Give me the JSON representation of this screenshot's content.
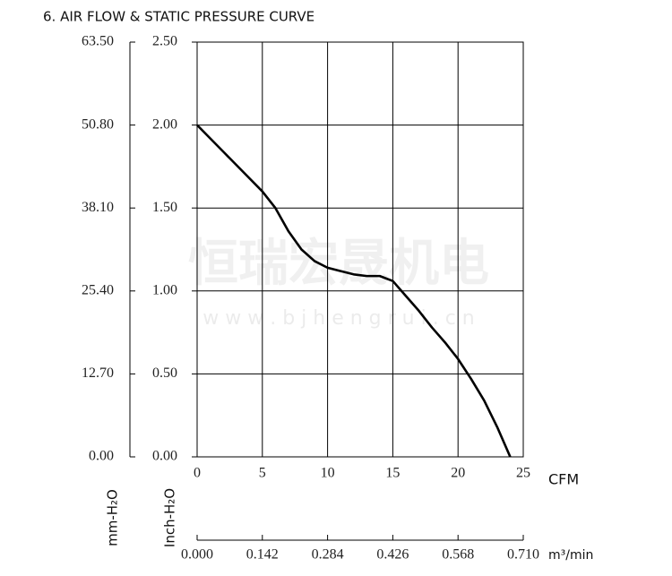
{
  "chart_data": {
    "type": "line",
    "title": "6. AIR FLOW & STATIC PRESSURE CURVE",
    "watermark": "恒瑞宏晟机电",
    "watermark_url": "w w w . b j h e n g r u i . c n",
    "x_label": "CFM",
    "y_label": "Inch-H₂O",
    "y2_label": "mm-H₂O",
    "x2_label": "m³/min",
    "x": [
      0,
      2,
      4,
      5,
      6,
      7,
      8,
      9,
      10,
      11,
      12,
      13,
      14,
      15,
      16,
      17,
      18,
      19,
      20,
      21,
      22,
      23,
      24
    ],
    "series": [
      {
        "color": "#000000",
        "values": [
          2.0,
          1.84,
          1.68,
          1.6,
          1.5,
          1.36,
          1.25,
          1.18,
          1.14,
          1.12,
          1.1,
          1.09,
          1.09,
          1.06,
          0.97,
          0.88,
          0.78,
          0.69,
          0.59,
          0.47,
          0.34,
          0.18,
          0.0
        ]
      }
    ],
    "xlim": [
      0,
      25
    ],
    "xticks": [
      0,
      5,
      10,
      15,
      20,
      25
    ],
    "ylim": [
      0,
      2.5
    ],
    "yticks": [
      {
        "value": 0,
        "label": "0.00"
      },
      {
        "value": 0.5,
        "label": "0.50"
      },
      {
        "value": 1,
        "label": "1.00"
      },
      {
        "value": 1.5,
        "label": "1.50"
      },
      {
        "value": 2,
        "label": "2.00"
      },
      {
        "value": 2.5,
        "label": "2.50"
      }
    ],
    "y2lim": [
      0,
      63.5
    ],
    "y2ticks": [
      {
        "value": 0,
        "label": "0.00"
      },
      {
        "value": 12.7,
        "label": "12.70"
      },
      {
        "value": 25.4,
        "label": "25.40"
      },
      {
        "value": 38.1,
        "label": "38.10"
      },
      {
        "value": 50.8,
        "label": "50.80"
      },
      {
        "value": 63.5,
        "label": "63.50"
      }
    ],
    "x2lim": [
      0,
      0.71
    ],
    "x2ticks": [
      {
        "value": 0,
        "label": "0.000"
      },
      {
        "value": 0.142,
        "label": "0.142"
      },
      {
        "value": 0.284,
        "label": "0.284"
      },
      {
        "value": 0.426,
        "label": "0.426"
      },
      {
        "value": 0.568,
        "label": "0.568"
      },
      {
        "value": 0.71,
        "label": "0.710"
      }
    ],
    "grid": true
  }
}
